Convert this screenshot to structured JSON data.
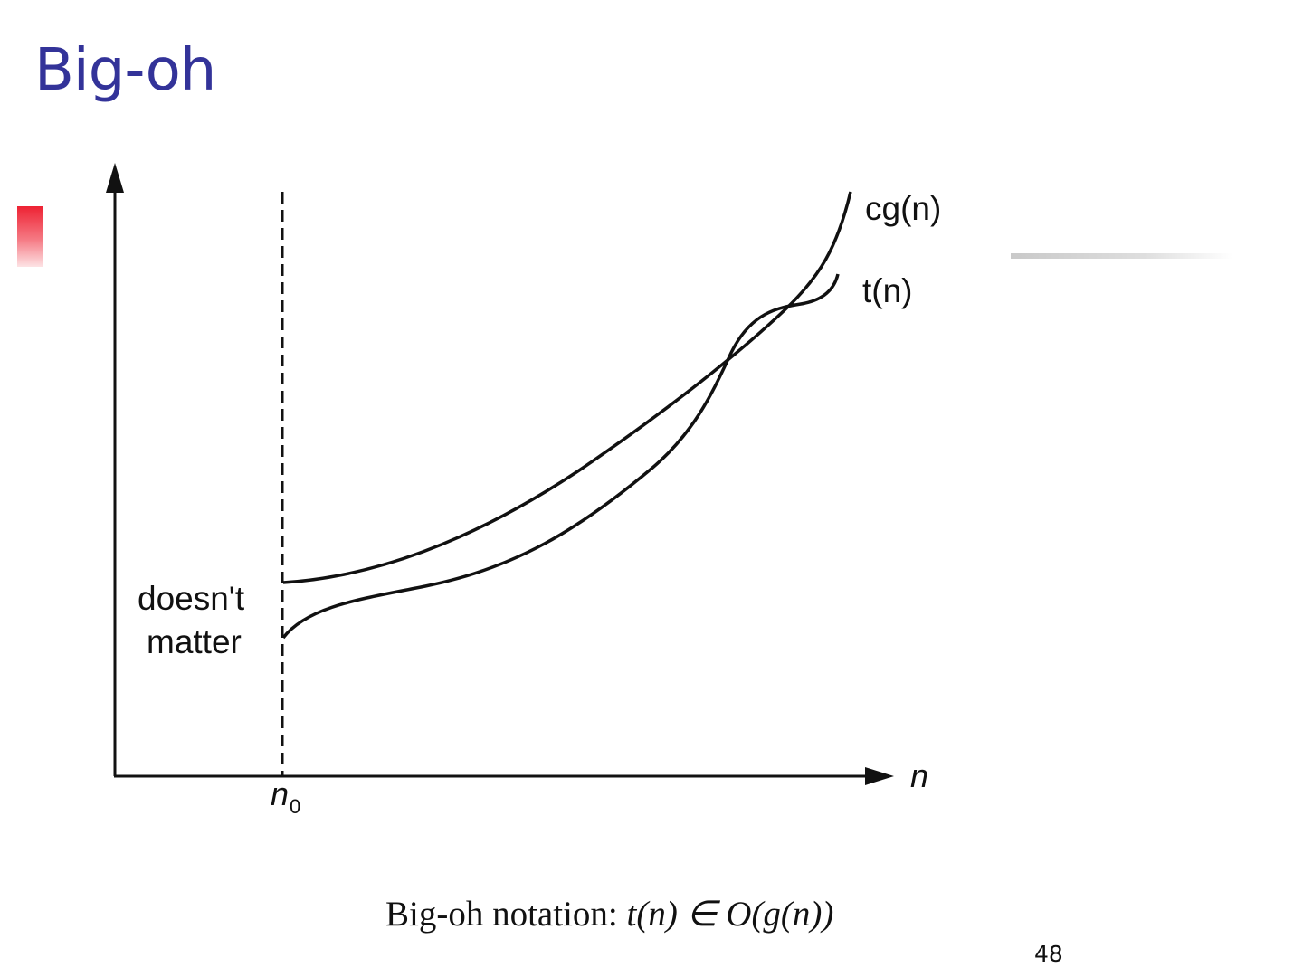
{
  "slide": {
    "title": "Big-oh",
    "page_number": "48"
  },
  "diagram": {
    "curve_upper_label": "cg(n)",
    "curve_lower_label": "t(n)",
    "region_label_line1": "doesn't",
    "region_label_line2": "matter",
    "x_axis_label": "n",
    "threshold_label_base": "n",
    "threshold_label_sub": "0"
  },
  "caption": {
    "prefix": "Big-oh notation: ",
    "formula": "t(n) ∈ O(g(n))"
  }
}
